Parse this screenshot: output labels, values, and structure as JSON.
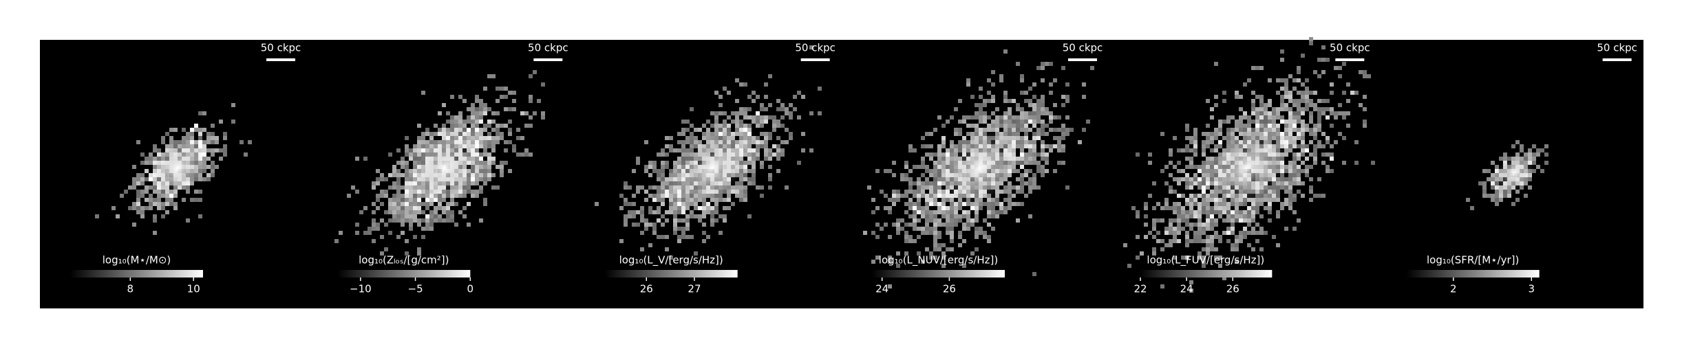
{
  "panels": [
    {
      "scalebar": "50 ckpc",
      "colorbar": {
        "label": "log₁₀(M⋆/M⊙)",
        "lim": [
          6.1,
          10.3
        ],
        "ticks": [
          8,
          10
        ]
      }
    },
    {
      "scalebar": "50 ckpc",
      "colorbar": {
        "label": "log₁₀(Zₗₒₛ/[g/cm²])",
        "lim": [
          -12.1,
          0
        ],
        "ticks": [
          {
            "value": -10,
            "label": "−10"
          },
          {
            "value": -5,
            "label": "−5"
          },
          0
        ]
      }
    },
    {
      "scalebar": "50 ckpc",
      "colorbar": {
        "label": "log₁₀(L_V/[erg/s/Hz])",
        "lim": [
          25.13,
          27.9
        ],
        "ticks": [
          26,
          27
        ]
      }
    },
    {
      "scalebar": "50 ckpc",
      "colorbar": {
        "label": "log₁₀(L_NUV/[erg/s/Hz])",
        "lim": [
          23.7,
          27.65
        ],
        "ticks": [
          24,
          26
        ]
      }
    },
    {
      "scalebar": "50 ckpc",
      "colorbar": {
        "label": "log₁₀(L_FUV/[erg/s/Hz])",
        "lim": [
          21.95,
          27.7
        ],
        "ticks": [
          22,
          24,
          26
        ]
      }
    },
    {
      "scalebar": "50 ckpc",
      "colorbar": {
        "label": "log₁₀(SFR/[M⋆/yr])",
        "lim": [
          1.4,
          3.1
        ],
        "ticks": [
          2,
          3
        ]
      }
    }
  ]
}
